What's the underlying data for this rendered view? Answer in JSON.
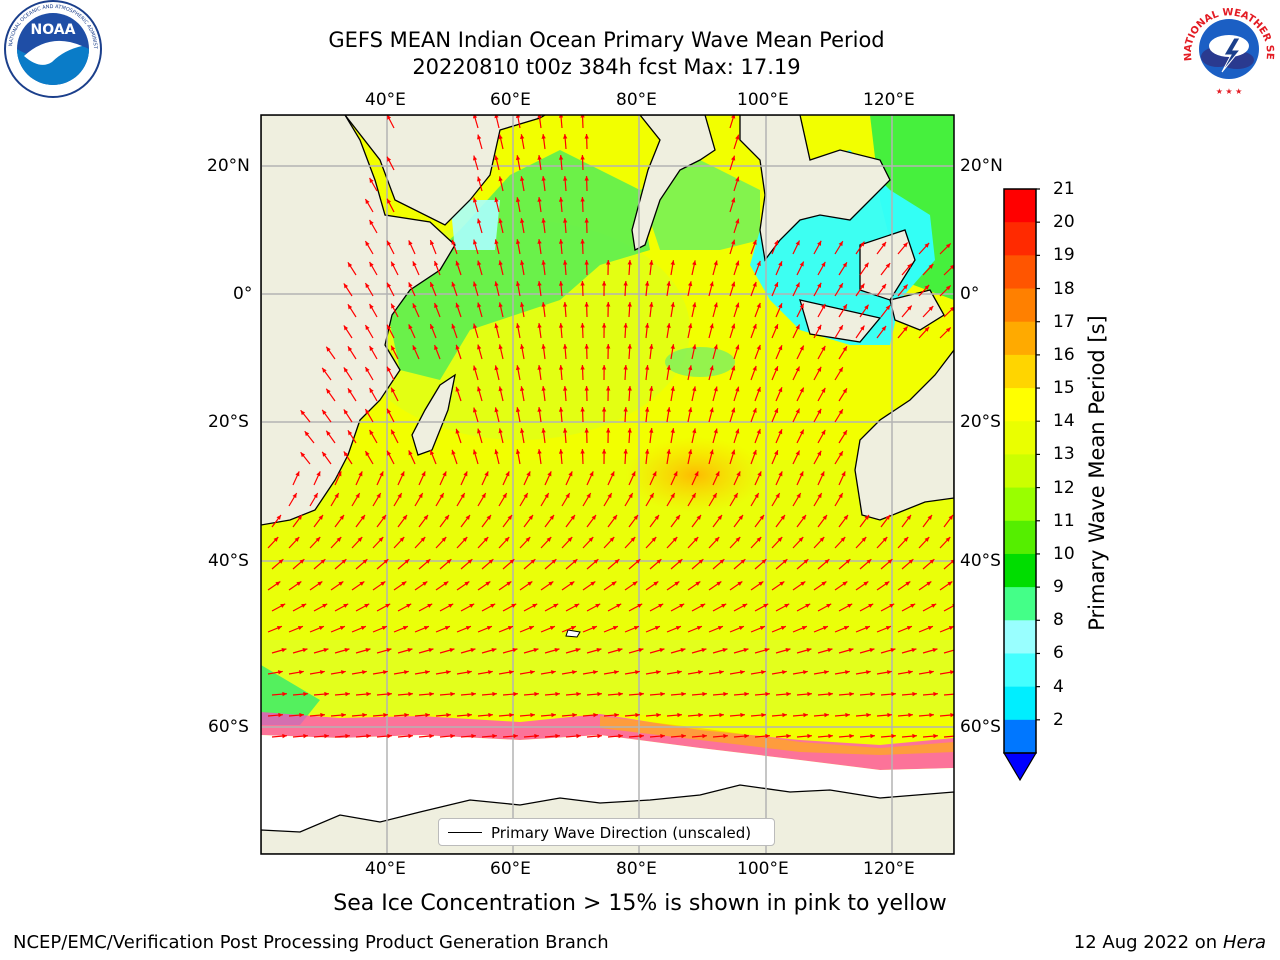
{
  "header": {
    "title_line1": "GEFS MEAN Indian Ocean Primary Wave Mean Period",
    "title_line2": "20220810 t00z 384h fcst   Max: 17.19"
  },
  "logos": {
    "left": {
      "text": "NOAA",
      "ring_text": "NATIONAL OCEANIC AND ATMOSPHERIC ADMINISTRATION · U.S. DEPARTMENT OF COMMERCE"
    },
    "right": {
      "ring_text": "NATIONAL WEATHER SERVICE"
    }
  },
  "map": {
    "lon_labels": [
      "40°E",
      "60°E",
      "80°E",
      "100°E",
      "120°E"
    ],
    "lat_labels": [
      "20°N",
      "0°",
      "20°S",
      "40°S",
      "60°S"
    ],
    "legend_label": "Primary Wave Direction (unscaled)",
    "land_color": "#efefdf",
    "ice_color": "#ffffff",
    "arrow_color": "#ff0000"
  },
  "colorbar": {
    "label": "Primary Wave Mean Period [s]",
    "ticks": [
      "21",
      "20",
      "19",
      "18",
      "17",
      "16",
      "15",
      "14",
      "13",
      "12",
      "11",
      "10",
      "9",
      "8",
      "6",
      "4",
      "2"
    ],
    "colors": [
      "#ff0000",
      "#ff2a00",
      "#ff5500",
      "#ff8000",
      "#ffaa00",
      "#ffd500",
      "#ffff00",
      "#eaff00",
      "#ccff00",
      "#99ff00",
      "#55ee00",
      "#00dd00",
      "#44ff88",
      "#99ffff",
      "#44ffff",
      "#00eeff",
      "#0077ff"
    ],
    "extend_color": "#0000ff"
  },
  "caption": "Sea Ice Concentration > 15% is shown in pink to yellow",
  "footer": {
    "left": "NCEP/EMC/Verification Post Processing Product Generation Branch",
    "right_date": "12 Aug 2022 on",
    "right_host": "Hera"
  }
}
